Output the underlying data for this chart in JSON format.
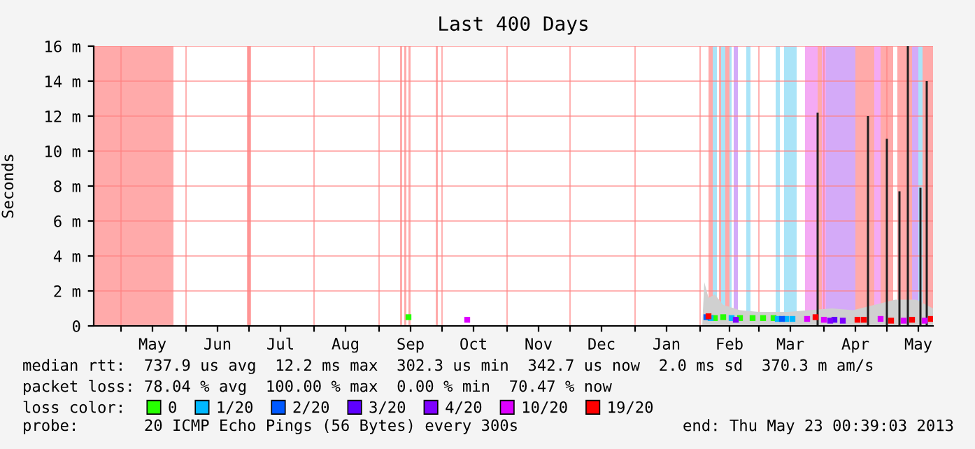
{
  "chart_data": {
    "type": "scatter",
    "title": "Last 400 Days",
    "ylabel": "Seconds",
    "legend_title": "loss color:",
    "xlim": [
      "2012-04-18",
      "2013-05-23"
    ],
    "xticks": [
      {
        "value": "2012-05-01",
        "label": null
      },
      {
        "value": "2012-05-16",
        "label": "May"
      },
      {
        "value": "2012-06-01",
        "label": null
      },
      {
        "value": "2012-06-16",
        "label": "Jun"
      },
      {
        "value": "2012-07-01",
        "label": null
      },
      {
        "value": "2012-07-16",
        "label": "Jul"
      },
      {
        "value": "2012-08-01",
        "label": null
      },
      {
        "value": "2012-08-16",
        "label": "Aug"
      },
      {
        "value": "2012-09-01",
        "label": null
      },
      {
        "value": "2012-09-16",
        "label": "Sep"
      },
      {
        "value": "2012-10-01",
        "label": null
      },
      {
        "value": "2012-10-16",
        "label": "Oct"
      },
      {
        "value": "2012-11-01",
        "label": null
      },
      {
        "value": "2012-11-16",
        "label": "Nov"
      },
      {
        "value": "2012-12-01",
        "label": null
      },
      {
        "value": "2012-12-16",
        "label": "Dec"
      },
      {
        "value": "2013-01-01",
        "label": null
      },
      {
        "value": "2013-01-16",
        "label": "Jan"
      },
      {
        "value": "2013-02-01",
        "label": null
      },
      {
        "value": "2013-02-15",
        "label": "Feb"
      },
      {
        "value": "2013-03-01",
        "label": null
      },
      {
        "value": "2013-03-16",
        "label": "Mar"
      },
      {
        "value": "2013-04-01",
        "label": null
      },
      {
        "value": "2013-04-16",
        "label": "Apr"
      },
      {
        "value": "2013-05-01",
        "label": null
      },
      {
        "value": "2013-05-16",
        "label": "May"
      }
    ],
    "ylim": [
      0,
      16
    ],
    "yticks": [
      0,
      {
        "value": 2,
        "label": "2 m"
      },
      {
        "value": 4,
        "label": "4 m"
      },
      {
        "value": 6,
        "label": "6 m"
      },
      {
        "value": 8,
        "label": "8 m"
      },
      {
        "value": 10,
        "label": "10 m"
      },
      {
        "value": 12,
        "label": "12 m"
      },
      {
        "value": 14,
        "label": "14 m"
      },
      {
        "value": 16,
        "label": "16 m"
      }
    ],
    "grid": true,
    "legend": "bottom",
    "bands": [
      {
        "axis": "x",
        "from": "2012-04-18",
        "to": "2012-05-26",
        "color": "#ffaaaa"
      },
      {
        "axis": "x",
        "from": "2012-06-30",
        "to": "2012-07-02",
        "color": "#ffaaaa"
      },
      {
        "axis": "x",
        "from": "2012-09-11",
        "to": "2012-09-12",
        "color": "#ffaaaa"
      },
      {
        "axis": "x",
        "from": "2012-09-13",
        "to": "2012-09-14",
        "color": "#ffaaaa"
      },
      {
        "axis": "x",
        "from": "2012-09-15",
        "to": "2012-09-16",
        "color": "#ffaaaa"
      },
      {
        "axis": "x",
        "from": "2012-09-28",
        "to": "2012-09-29",
        "color": "#ffaaaa"
      },
      {
        "axis": "x",
        "from": "2013-02-05",
        "to": "2013-02-07",
        "color": "#ffaaaa"
      },
      {
        "axis": "x",
        "from": "2013-02-07",
        "to": "2013-02-09",
        "color": "#aae4f8"
      },
      {
        "axis": "x",
        "from": "2013-02-10",
        "to": "2013-02-11",
        "color": "#ffaaaa"
      },
      {
        "axis": "x",
        "from": "2013-02-11",
        "to": "2013-02-13",
        "color": "#aae4f8"
      },
      {
        "axis": "x",
        "from": "2013-02-13",
        "to": "2013-02-15",
        "color": "#ffaaaa"
      },
      {
        "axis": "x",
        "from": "2013-02-15",
        "to": "2013-02-16",
        "color": "#aae4f8"
      },
      {
        "axis": "x",
        "from": "2013-02-17",
        "to": "2013-02-19",
        "color": "#d4aaf8"
      },
      {
        "axis": "x",
        "from": "2013-02-23",
        "to": "2013-02-25",
        "color": "#aae4f8"
      },
      {
        "axis": "x",
        "from": "2013-03-09",
        "to": "2013-03-11",
        "color": "#aae4f8"
      },
      {
        "axis": "x",
        "from": "2013-03-13",
        "to": "2013-03-19",
        "color": "#aae4f8"
      },
      {
        "axis": "x",
        "from": "2013-03-23",
        "to": "2013-03-29",
        "color": "#f4aaf4"
      },
      {
        "axis": "x",
        "from": "2013-03-29",
        "to": "2013-03-31",
        "color": "#ffaaaa"
      },
      {
        "axis": "x",
        "from": "2013-03-31",
        "to": "2013-04-02",
        "color": "#f4aaf4"
      },
      {
        "axis": "x",
        "from": "2013-04-02",
        "to": "2013-04-16",
        "color": "#d4aaf8"
      },
      {
        "axis": "x",
        "from": "2013-04-16",
        "to": "2013-04-25",
        "color": "#ffaaaa"
      },
      {
        "axis": "x",
        "from": "2013-04-25",
        "to": "2013-04-28",
        "color": "#f4aaf4"
      },
      {
        "axis": "x",
        "from": "2013-04-28",
        "to": "2013-05-04",
        "color": "#ffaaaa"
      },
      {
        "axis": "x",
        "from": "2013-05-06",
        "to": "2013-05-13",
        "color": "#ffaaaa"
      },
      {
        "axis": "x",
        "from": "2013-05-13",
        "to": "2013-05-16",
        "color": "#d4aaf8"
      },
      {
        "axis": "x",
        "from": "2013-05-16",
        "to": "2013-05-18",
        "color": "#aae4f8"
      },
      {
        "axis": "x",
        "from": "2013-05-18",
        "to": "2013-05-23",
        "color": "#ffaaaa"
      }
    ],
    "series": [
      {
        "type": "area",
        "color": "#d0d0d0",
        "x": [
          "2013-02-02",
          "2013-02-03",
          "2013-02-05",
          "2013-02-08",
          "2013-02-12",
          "2013-02-20",
          "2013-03-01",
          "2013-03-15",
          "2013-03-25",
          "2013-04-05",
          "2013-04-15",
          "2013-04-25",
          "2013-05-05",
          "2013-05-15",
          "2013-05-23"
        ],
        "values": [
          0,
          2.5,
          1.6,
          1.8,
          1.2,
          0.9,
          0.8,
          0.8,
          0.9,
          1.0,
          0.9,
          1.2,
          1.5,
          1.5,
          1.0
        ]
      },
      {
        "type": "bar",
        "color": "#202020",
        "x": [
          "2013-03-29",
          "2013-04-22",
          "2013-05-01",
          "2013-05-07",
          "2013-05-11",
          "2013-05-17",
          "2013-05-20"
        ],
        "values": [
          12.2,
          12,
          10.7,
          7.7,
          16,
          7.9,
          14
        ]
      },
      {
        "name": "0",
        "marker": "square",
        "color": "#26ff00",
        "x": [
          "2012-09-15",
          "2013-02-08",
          "2013-02-12",
          "2013-02-20",
          "2013-02-26",
          "2013-03-03",
          "2013-03-08"
        ],
        "values": [
          0.5,
          0.45,
          0.5,
          0.45,
          0.45,
          0.45,
          0.45
        ]
      },
      {
        "name": "1/20",
        "marker": "square",
        "color": "#00b8ff",
        "x": [
          "2013-02-06",
          "2013-02-16",
          "2013-03-10",
          "2013-03-14",
          "2013-03-17"
        ],
        "values": [
          0.45,
          0.45,
          0.4,
          0.4,
          0.4
        ]
      },
      {
        "name": "2/20",
        "marker": "square",
        "color": "#0059ff",
        "x": [
          "2013-02-04",
          "2013-03-12"
        ],
        "values": [
          0.5,
          0.4
        ]
      },
      {
        "name": "3/20",
        "marker": "square",
        "color": "#5e00ff",
        "x": [
          "2013-04-06"
        ],
        "values": [
          0.35
        ]
      },
      {
        "name": "4/20",
        "marker": "square",
        "color": "#7e00ff",
        "x": [
          "2013-02-18",
          "2013-04-04",
          "2013-04-10"
        ],
        "values": [
          0.35,
          0.3,
          0.3
        ]
      },
      {
        "name": "10/20",
        "marker": "square",
        "color": "#dd00ff",
        "x": [
          "2012-10-13",
          "2013-03-24",
          "2013-04-01",
          "2013-04-28",
          "2013-05-09",
          "2013-05-19"
        ],
        "values": [
          0.35,
          0.4,
          0.35,
          0.4,
          0.3,
          0.3
        ]
      },
      {
        "name": "19/20",
        "marker": "square",
        "color": "#ff0000",
        "x": [
          "2013-02-05",
          "2013-03-28",
          "2013-04-17",
          "2013-04-20",
          "2013-05-03",
          "2013-05-13",
          "2013-05-22"
        ],
        "values": [
          0.55,
          0.5,
          0.35,
          0.35,
          0.3,
          0.35,
          0.4
        ]
      }
    ],
    "annotations": [
      "median rtt:  737.9 us avg  12.2 ms max  302.3 us min  342.7 us now  2.0 ms sd  370.3 m am/s",
      "packet loss: 78.04 % avg  100.00 % max  0.00 % min  70.47 % now",
      "probe:       20 ICMP Echo Pings (56 Bytes) every 300s",
      "end: Thu May 23 00:39:03 2013"
    ]
  }
}
